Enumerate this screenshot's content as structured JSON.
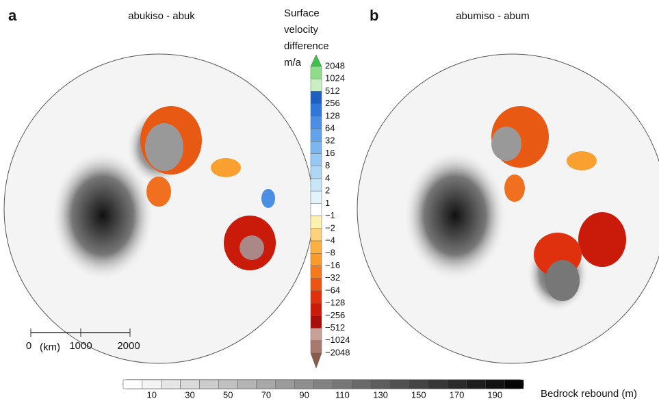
{
  "panels": [
    {
      "label": "a",
      "title": "abukiso - abuk"
    },
    {
      "label": "b",
      "title": "abumiso - abum"
    }
  ],
  "scale_bar": {
    "labels": [
      "0",
      "1000",
      "2000"
    ],
    "unit": "(km)"
  },
  "velocity_colorbar": {
    "title": [
      "Surface",
      "velocity",
      "difference",
      "m/a"
    ],
    "labels": [
      "2048",
      "1024",
      "512",
      "256",
      "128",
      "64",
      "32",
      "16",
      "8",
      "4",
      "2",
      "1",
      "−1",
      "−2",
      "−4",
      "−8",
      "−16",
      "−32",
      "−64",
      "−128",
      "−256",
      "−512",
      "−1024",
      "−2048"
    ],
    "top_color": "#3cc24a",
    "bottom_color": "#8a5a4a",
    "colors": [
      "#8fdc8a",
      "#c9efc2",
      "#1f5fbf",
      "#2f78d8",
      "#4a8fe3",
      "#62a3ea",
      "#7bb6ef",
      "#95c8f3",
      "#aed7f6",
      "#c8e6f8",
      "#e2f3fb",
      "#ffffff",
      "#fff2b0",
      "#fdd27a",
      "#fbb040",
      "#f99a2a",
      "#f47a1c",
      "#ec5413",
      "#df310d",
      "#c91a0a",
      "#a80f0a",
      "#c8a098",
      "#a87a6e"
    ]
  },
  "rebound_colorbar": {
    "title": "Bedrock rebound (m)",
    "labels": [
      "10",
      "30",
      "50",
      "70",
      "90",
      "110",
      "130",
      "150",
      "170",
      "190"
    ]
  }
}
